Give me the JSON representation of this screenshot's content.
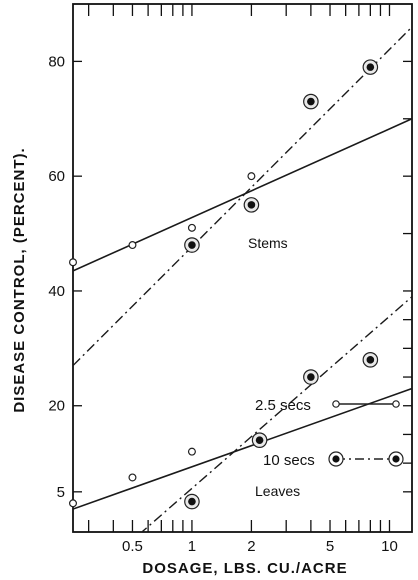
{
  "chart_data": {
    "type": "line",
    "title": "",
    "xlabel": "DOSAGE, LBS. CU./ACRE",
    "ylabel": "DISEASE CONTROL, (PERCENT).",
    "x_scale": "log",
    "xlim": [
      0.25,
      13
    ],
    "x_ticks": [
      0.5,
      1,
      2,
      5,
      10
    ],
    "x_tick_labels": [
      "0.5",
      "1",
      "2",
      "5",
      "10"
    ],
    "y_tick_labels": [
      "5",
      "20",
      "40",
      "60",
      "80"
    ],
    "ylim": [
      -2,
      90
    ],
    "grid": false,
    "legend_position": "bottom-right",
    "annotations": [
      {
        "text": "Stems",
        "x": 2.6,
        "y": 38
      },
      {
        "text": "Leaves",
        "x": 2.8,
        "y": -3
      }
    ],
    "panels": [
      {
        "name": "Stems",
        "y_ticks": [
          40,
          60,
          80
        ],
        "series": [
          {
            "name": "2.5 secs",
            "style": "solid",
            "marker": "open-circle",
            "x": [
              0.25,
              0.5,
              1,
              2
            ],
            "y": [
              45,
              48,
              51,
              60
            ],
            "fit": [
              [
                0.25,
                43.5
              ],
              [
                13,
                70
              ]
            ]
          },
          {
            "name": "10 secs",
            "style": "dash-dot",
            "marker": "filled-circle",
            "x": [
              1,
              2,
              4,
              8
            ],
            "y": [
              48,
              55,
              73,
              79
            ],
            "fit": [
              [
                0.25,
                27
              ],
              [
                13,
                86
              ]
            ]
          }
        ]
      },
      {
        "name": "Leaves",
        "y_ticks": [
          5,
          20
        ],
        "series": [
          {
            "name": "2.5 secs",
            "style": "solid",
            "marker": "open-circle",
            "x": [
              0.25,
              0.5,
              1,
              2.2
            ],
            "y": [
              3,
              7.5,
              12,
              14.2
            ],
            "fit": [
              [
                0.25,
                2
              ],
              [
                13,
                23
              ]
            ]
          },
          {
            "name": "10 secs",
            "style": "dash-dot",
            "marker": "filled-circle",
            "x": [
              1,
              2.2,
              4,
              8
            ],
            "y": [
              3.3,
              14,
              25,
              28
            ],
            "fit": [
              [
                0.38,
                -7
              ],
              [
                13,
                39
              ]
            ]
          }
        ]
      }
    ]
  },
  "legend": {
    "items": [
      {
        "label": "2.5 secs",
        "style": "solid",
        "marker": "open-circle"
      },
      {
        "label": "10 secs",
        "style": "dash-dot",
        "marker": "filled-circle"
      }
    ]
  }
}
